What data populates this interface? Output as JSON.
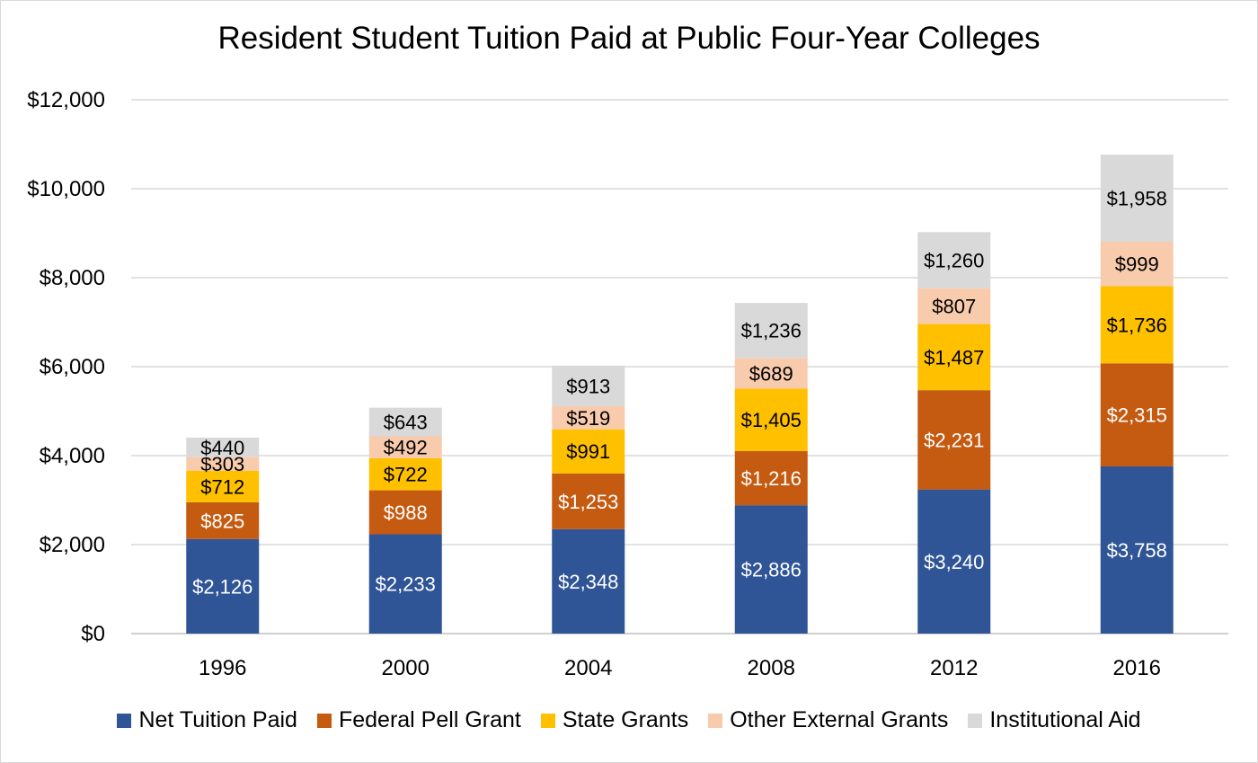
{
  "chart_data": {
    "type": "bar",
    "stacked": true,
    "title": "Resident Student Tuition Paid at Public Four-Year Colleges",
    "xlabel": "",
    "ylabel": "",
    "categories": [
      "1996",
      "2000",
      "2004",
      "2008",
      "2012",
      "2016"
    ],
    "ylim": [
      0,
      12000
    ],
    "yticks": [
      0,
      2000,
      4000,
      6000,
      8000,
      10000,
      12000
    ],
    "ytick_labels": [
      "$0",
      "$2,000",
      "$4,000",
      "$6,000",
      "$8,000",
      "$10,000",
      "$12,000"
    ],
    "grid": true,
    "legend_position": "bottom",
    "series": [
      {
        "name": "Net Tuition Paid",
        "color": "#2F5597",
        "label_color": "#ffffff",
        "values": [
          2126,
          2233,
          2348,
          2886,
          3240,
          3758
        ],
        "labels": [
          "$2,126",
          "$2,233",
          "$2,348",
          "$2,886",
          "$3,240",
          "$3,758"
        ]
      },
      {
        "name": "Federal Pell Grant",
        "color": "#C55A11",
        "label_color": "#ffffff",
        "values": [
          825,
          988,
          1253,
          1216,
          2231,
          2315
        ],
        "labels": [
          "$825",
          "$988",
          "$1,253",
          "$1,216",
          "$2,231",
          "$2,315"
        ]
      },
      {
        "name": "State Grants",
        "color": "#FFC000",
        "label_color": "#000000",
        "values": [
          712,
          722,
          991,
          1405,
          1487,
          1736
        ],
        "labels": [
          "$712",
          "$722",
          "$991",
          "$1,405",
          "$1,487",
          "$1,736"
        ]
      },
      {
        "name": "Other External Grants",
        "color": "#F8CBAD",
        "label_color": "#000000",
        "values": [
          303,
          492,
          519,
          689,
          807,
          999
        ],
        "labels": [
          "$303",
          "$492",
          "$519",
          "$689",
          "$807",
          "$999"
        ]
      },
      {
        "name": "Institutional Aid",
        "color": "#D9D9D9",
        "label_color": "#000000",
        "values": [
          440,
          643,
          913,
          1236,
          1260,
          1958
        ],
        "labels": [
          "$440",
          "$643",
          "$913",
          "$1,236",
          "$1,260",
          "$1,958"
        ]
      }
    ]
  }
}
